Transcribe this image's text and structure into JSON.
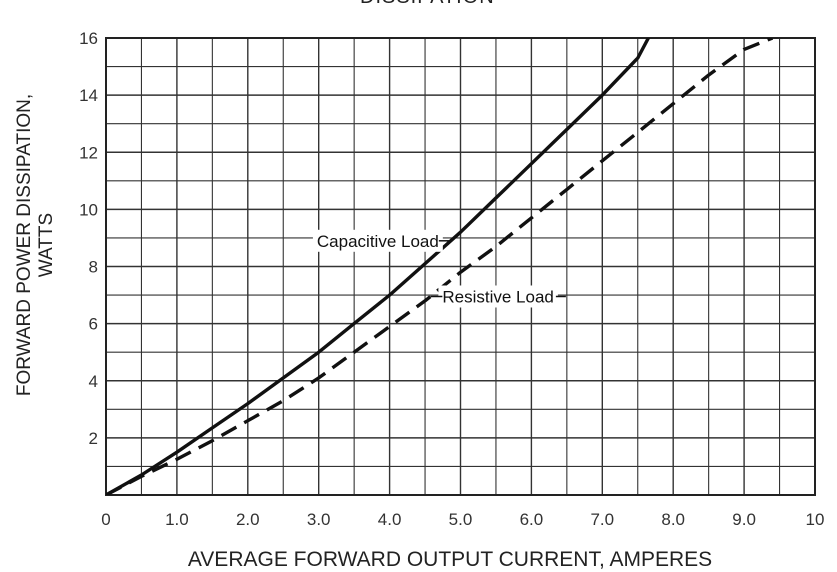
{
  "chart_data": {
    "type": "line",
    "title": "DISSIPATION",
    "xlabel": "AVERAGE FORWARD OUTPUT CURRENT, AMPERES",
    "ylabel_line1": "FORWARD POWER DISSIPATION,",
    "ylabel_line2": "WATTS",
    "xlim": [
      0,
      10
    ],
    "ylim": [
      0,
      16
    ],
    "x_ticks": [
      "0",
      "1.0",
      "2.0",
      "3.0",
      "4.0",
      "5.0",
      "6.0",
      "7.0",
      "8.0",
      "9.0",
      "10"
    ],
    "x_tick_values": [
      0,
      1,
      2,
      3,
      4,
      5,
      6,
      7,
      8,
      9,
      10
    ],
    "y_ticks": [
      "2",
      "4",
      "6",
      "8",
      "10",
      "12",
      "14",
      "16"
    ],
    "y_tick_values": [
      2,
      4,
      6,
      8,
      10,
      12,
      14,
      16
    ],
    "grid": true,
    "series": [
      {
        "name": "Capacitive Load",
        "style": "solid",
        "x": [
          0,
          0.5,
          1.0,
          1.5,
          2.0,
          2.5,
          3.0,
          3.5,
          4.0,
          4.5,
          5.0,
          5.5,
          6.0,
          6.5,
          7.0,
          7.5,
          7.65
        ],
        "y": [
          0,
          0.7,
          1.5,
          2.35,
          3.2,
          4.1,
          5.0,
          6.0,
          7.0,
          8.1,
          9.2,
          10.4,
          11.6,
          12.8,
          14.0,
          15.3,
          16.0
        ]
      },
      {
        "name": "Resistive Load",
        "style": "dashed",
        "x": [
          0,
          0.5,
          1.0,
          1.5,
          2.0,
          2.5,
          3.0,
          3.5,
          4.0,
          4.5,
          5.0,
          5.5,
          6.0,
          6.5,
          7.0,
          7.5,
          8.0,
          8.5,
          9.0,
          9.4
        ],
        "y": [
          0,
          0.65,
          1.25,
          1.9,
          2.6,
          3.3,
          4.1,
          5.0,
          5.9,
          6.8,
          7.8,
          8.7,
          9.7,
          10.7,
          11.7,
          12.7,
          13.7,
          14.7,
          15.6,
          16.0
        ]
      }
    ],
    "annotations": [
      {
        "text": "Capacitive Load",
        "series": 0,
        "x": 3.9,
        "y": 8.9,
        "anchor": "end"
      },
      {
        "text": "Resistive Load",
        "series": 1,
        "x": 5.2,
        "y": 6.95,
        "anchor": "start"
      }
    ]
  }
}
